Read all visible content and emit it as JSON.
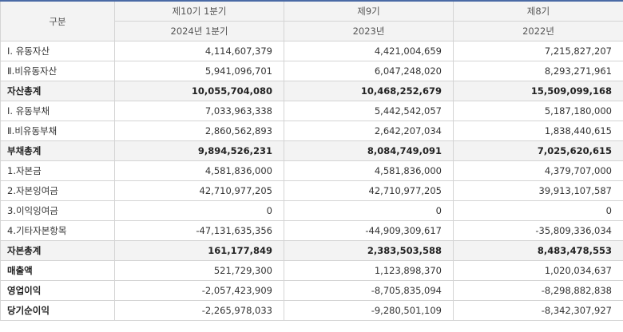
{
  "header": {
    "category": "구분",
    "periods": [
      "제10기 1분기",
      "제9기",
      "제8기"
    ],
    "years": [
      "2024년 1분기",
      "2023년",
      "2022년"
    ]
  },
  "rows": [
    {
      "label": "Ⅰ. 유동자산",
      "values": [
        "4,114,607,379",
        "4,421,004,659",
        "7,215,827,207"
      ],
      "style": "normal"
    },
    {
      "label": "Ⅱ.비유동자산",
      "values": [
        "5,941,096,701",
        "6,047,248,020",
        "8,293,271,961"
      ],
      "style": "normal"
    },
    {
      "label": "자산총계",
      "values": [
        "10,055,704,080",
        "10,468,252,679",
        "15,509,099,168"
      ],
      "style": "total"
    },
    {
      "label": "Ⅰ. 유동부채",
      "values": [
        "7,033,963,338",
        "5,442,542,057",
        "5,187,180,000"
      ],
      "style": "normal"
    },
    {
      "label": "Ⅱ.비유동부채",
      "values": [
        "2,860,562,893",
        "2,642,207,034",
        "1,838,440,615"
      ],
      "style": "normal"
    },
    {
      "label": "부채총계",
      "values": [
        "9,894,526,231",
        "8,084,749,091",
        "7,025,620,615"
      ],
      "style": "total"
    },
    {
      "label": "1.자본금",
      "values": [
        "4,581,836,000",
        "4,581,836,000",
        "4,379,707,000"
      ],
      "style": "normal"
    },
    {
      "label": "2.자본잉여금",
      "values": [
        "42,710,977,205",
        "42,710,977,205",
        "39,913,107,587"
      ],
      "style": "normal"
    },
    {
      "label": "3.이익잉여금",
      "values": [
        "0",
        "0",
        "0"
      ],
      "style": "normal"
    },
    {
      "label": "4.기타자본항목",
      "values": [
        "-47,131,635,356",
        "-44,909,309,617",
        "-35,809,336,034"
      ],
      "style": "normal"
    },
    {
      "label": "자본총계",
      "values": [
        "161,177,849",
        "2,383,503,588",
        "8,483,478,553"
      ],
      "style": "total"
    },
    {
      "label": "매출액",
      "values": [
        "521,729,300",
        "1,123,898,370",
        "1,020,034,637"
      ],
      "style": "bold"
    },
    {
      "label": "영업이익",
      "values": [
        "-2,057,423,909",
        "-8,705,835,094",
        "-8,298,882,838"
      ],
      "style": "bold"
    },
    {
      "label": "당기순이익",
      "values": [
        "-2,265,978,033",
        "-9,280,501,109",
        "-8,342,307,927"
      ],
      "style": "bold"
    }
  ]
}
